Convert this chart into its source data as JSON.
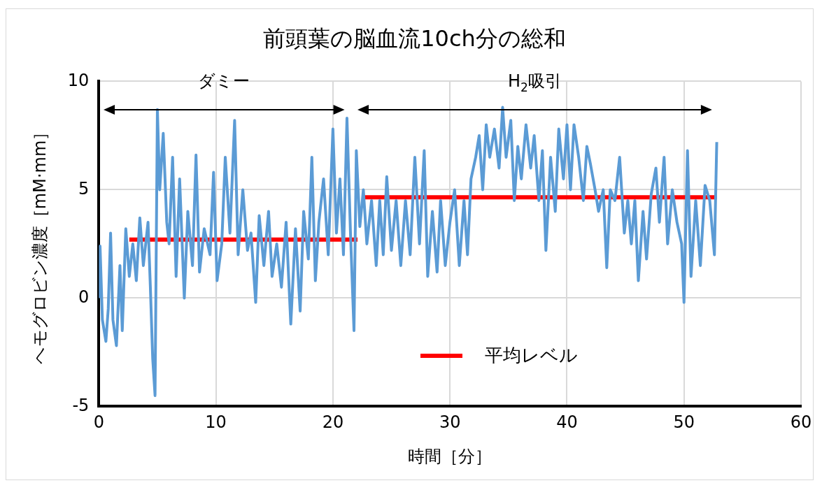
{
  "chart_data": {
    "type": "line",
    "title": "前頭葉の脳血流10ch分の総和",
    "xlabel": "時間［分］",
    "ylabel": "ヘモグロビン濃度［mM·mm］",
    "xlim": [
      0,
      60
    ],
    "xticks": [
      0,
      10,
      20,
      30,
      40,
      50,
      60
    ],
    "ylim": [
      -5,
      10
    ],
    "yticks": [
      -5,
      0,
      5,
      10
    ],
    "grid": true,
    "legend": "bottom",
    "marker": "none",
    "line_style": "solid",
    "annotations": [
      "ダミー",
      "H$_{2}$吸引"
    ],
    "series": [
      {
        "color": "#5b9bd5",
        "x": [
          0,
          0.1,
          0.3,
          0.6,
          0.8,
          1,
          1.2,
          1.5,
          1.8,
          2,
          2.3,
          2.6,
          2.9,
          3.2,
          3.5,
          3.8,
          4.2,
          4.4,
          4.6,
          4.8,
          5,
          5.2,
          5.5,
          5.8,
          6,
          6.3,
          6.6,
          6.9,
          7.3,
          7.6,
          8,
          8.3,
          8.6,
          9,
          9.5,
          9.8,
          10.1,
          10.5,
          10.8,
          11.2,
          11.6,
          11.9,
          12.3,
          12.7,
          13,
          13.4,
          13.7,
          14.1,
          14.5,
          14.8,
          15.2,
          15.6,
          16,
          16.4,
          16.8,
          17.2,
          17.5,
          17.9,
          18.2,
          18.5,
          18.8,
          19.2,
          19.6,
          20,
          20.3,
          20.6,
          20.9,
          21.2,
          21.5,
          21.8,
          22,
          22.3,
          22.6,
          22.9,
          23.3,
          23.7,
          24,
          24.3,
          24.6,
          25,
          25.4,
          25.8,
          26.2,
          26.6,
          27,
          27.4,
          27.8,
          28.1,
          28.5,
          28.9,
          29.2,
          29.6,
          30,
          30.4,
          30.8,
          31.2,
          31.5,
          31.8,
          32.2,
          32.5,
          32.8,
          33.1,
          33.4,
          33.8,
          34.2,
          34.5,
          34.8,
          35.2,
          35.5,
          35.8,
          36.1,
          36.5,
          36.9,
          37.2,
          37.6,
          37.9,
          38.2,
          38.6,
          39,
          39.3,
          39.7,
          40,
          40.3,
          40.6,
          41,
          41.4,
          41.7,
          42,
          42.4,
          42.7,
          43.1,
          43.4,
          43.7,
          44.1,
          44.5,
          44.9,
          45.2,
          45.5,
          45.8,
          46.1,
          46.5,
          46.8,
          47.2,
          47.6,
          47.9,
          48.3,
          48.6,
          49,
          49.4,
          49.8,
          50,
          50.3,
          50.6,
          51,
          51.4,
          51.8,
          52.2,
          52.6,
          52.8
        ],
        "values": [
          0,
          2.4,
          -1,
          -2,
          -0.5,
          3,
          -1,
          -2.2,
          1.5,
          -1.5,
          3.2,
          1,
          2.5,
          0.8,
          3.7,
          1.5,
          3.5,
          0.5,
          -2.8,
          -4.5,
          8.7,
          5,
          7.6,
          3.5,
          2.5,
          6.5,
          1,
          5.5,
          0,
          4,
          1.5,
          6.6,
          1.2,
          3.2,
          2,
          5.8,
          0.8,
          2.5,
          6.5,
          3,
          8.2,
          2,
          5,
          2.2,
          3,
          -0.2,
          3.8,
          1.5,
          4,
          1,
          2.5,
          0.5,
          3.5,
          -1.2,
          3.2,
          -0.6,
          4,
          1.8,
          6.5,
          0.8,
          3.5,
          5.5,
          2,
          7.8,
          3,
          5.5,
          2,
          8.3,
          3,
          -1.5,
          6.8,
          3.3,
          5,
          2.5,
          4.5,
          1.5,
          4.5,
          2,
          5.6,
          2.2,
          4.5,
          1.5,
          4.5,
          2,
          6.5,
          2.5,
          6.8,
          1,
          4,
          1.2,
          4.5,
          1.5,
          3.5,
          5,
          1.5,
          4.5,
          2,
          5.5,
          6.5,
          7.5,
          5,
          8,
          6.5,
          7.8,
          6,
          8.8,
          6.5,
          8.2,
          4.5,
          7,
          5.5,
          8,
          6,
          7.5,
          4.5,
          6.8,
          2.2,
          6.5,
          4,
          7.8,
          5.5,
          8,
          5,
          8,
          6.5,
          4.5,
          7,
          6.2,
          5,
          4,
          5,
          1.4,
          5,
          4.5,
          6.5,
          3,
          4.5,
          2.5,
          4.5,
          0.8,
          4,
          1.8,
          4.8,
          6,
          3.5,
          6.5,
          2.5,
          5,
          3.5,
          2.5,
          -0.2,
          6.8,
          1,
          4.5,
          1.5,
          5.2,
          4.5,
          2,
          7.2
        ]
      },
      {
        "name": "平均レベル",
        "color": "#ff0000",
        "x": [
          2.6,
          22.1,
          22.3,
          22.6,
          52.8
        ],
        "values": [
          2.7,
          2.7,
          null,
          4.65,
          4.65
        ]
      }
    ]
  }
}
